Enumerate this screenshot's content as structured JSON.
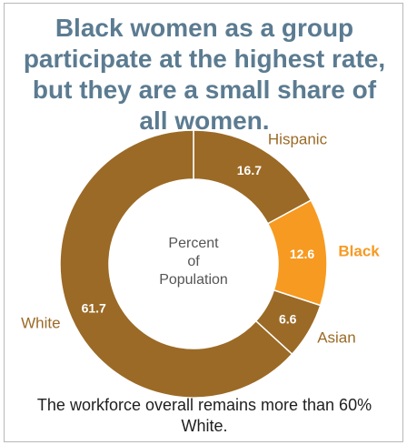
{
  "header": {
    "title": "Black women as a group participate at the highest rate, but they are a small share of all women."
  },
  "footnote": "The workforce overall remains more than 60% White.",
  "chart_data": {
    "type": "pie",
    "center_label": [
      "Percent",
      "of",
      "Population"
    ],
    "slices": [
      {
        "label": "Hispanic",
        "value": 16.7,
        "value_text": "16.7",
        "color": "#9b6a26",
        "label_color": "#9b6a26"
      },
      {
        "label": "Black",
        "value": 12.6,
        "value_text": "12.6",
        "color": "#f79a21",
        "label_color": "#f79a21"
      },
      {
        "label": "Asian",
        "value": 6.6,
        "value_text": "6.6",
        "color": "#9b6a26",
        "label_color": "#9b6a26"
      },
      {
        "label": "White",
        "value": 61.7,
        "value_text": "61.7",
        "color": "#9b6a26",
        "label_color": "#9b6a26"
      }
    ],
    "title": "Black women as a group participate at the highest rate, but they are a small share of all women."
  }
}
